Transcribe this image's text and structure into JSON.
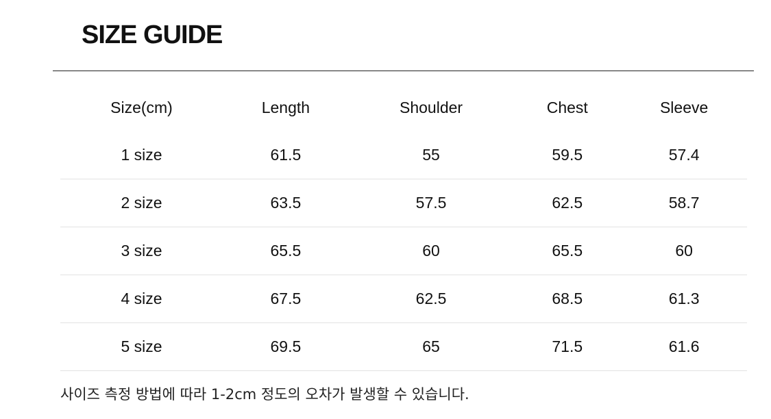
{
  "title": "SIZE GUIDE",
  "headers": [
    "Size(cm)",
    "Length",
    "Shoulder",
    "Chest",
    "Sleeve"
  ],
  "rows": [
    [
      "1 size",
      "61.5",
      "55",
      "59.5",
      "57.4"
    ],
    [
      "2 size",
      "63.5",
      "57.5",
      "62.5",
      "58.7"
    ],
    [
      "3 size",
      "65.5",
      "60",
      "65.5",
      "60"
    ],
    [
      "4 size",
      "67.5",
      "62.5",
      "68.5",
      "61.3"
    ],
    [
      "5 size",
      "69.5",
      "65",
      "71.5",
      "61.6"
    ]
  ],
  "note": "사이즈 측정 방법에 따라 1-2cm 정도의 오차가 발생할 수 있습니다."
}
